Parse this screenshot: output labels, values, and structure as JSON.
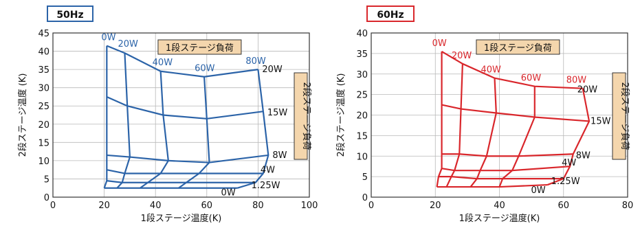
{
  "chart_data": [
    {
      "type": "line",
      "title": "50Hz",
      "xlabel": "1段ステージ温度(K)",
      "ylabel": "2段ステージ温度 (K)",
      "xlim": [
        0,
        100
      ],
      "ylim": [
        0,
        45
      ],
      "xticks": [
        0,
        20,
        40,
        60,
        80,
        100
      ],
      "yticks": [
        0,
        5,
        10,
        15,
        20,
        25,
        30,
        35,
        40,
        45
      ],
      "grid": true,
      "color": "#2b63a8",
      "legend_stage1": "1段ステージ負荷",
      "legend_stage2": "2段ステージ負荷",
      "stage1_loads": [
        "0W",
        "20W",
        "40W",
        "60W",
        "80W"
      ],
      "stage2_loads": [
        "20W",
        "15W",
        "8W",
        "4W",
        "1.25W",
        "0W"
      ],
      "grid_points": [
        [
          [
            21,
            41.5
          ],
          [
            28,
            39.5
          ],
          [
            42,
            34.5
          ],
          [
            59,
            33
          ],
          [
            80,
            35
          ]
        ],
        [
          [
            21,
            27.5
          ],
          [
            29,
            25
          ],
          [
            43,
            22.5
          ],
          [
            60,
            21.5
          ],
          [
            82,
            23.5
          ]
        ],
        [
          [
            21,
            11.5
          ],
          [
            30,
            11
          ],
          [
            45,
            10
          ],
          [
            61,
            9.5
          ],
          [
            84,
            11.5
          ]
        ],
        [
          [
            21,
            7.5
          ],
          [
            28,
            6.5
          ],
          [
            42,
            6.5
          ],
          [
            57,
            6.5
          ],
          [
            82,
            6.5
          ]
        ],
        [
          [
            21,
            4.5
          ],
          [
            27,
            4
          ],
          [
            37,
            4
          ],
          [
            52,
            4
          ],
          [
            79,
            4
          ]
        ],
        [
          [
            20,
            2.5
          ],
          [
            25,
            2.5
          ],
          [
            34,
            2.5
          ],
          [
            49,
            2.5
          ],
          [
            72,
            2.5
          ]
        ]
      ]
    },
    {
      "type": "line",
      "title": "60Hz",
      "xlabel": "1段ステージ温度(K)",
      "ylabel": "2段ステージ温度 (K)",
      "xlim": [
        0,
        80
      ],
      "ylim": [
        0,
        40
      ],
      "xticks": [
        0,
        20,
        40,
        60,
        80
      ],
      "yticks": [
        0,
        5,
        10,
        15,
        20,
        25,
        30,
        35,
        40
      ],
      "grid": true,
      "color": "#d9262b",
      "legend_stage1": "1段ステージ負荷",
      "legend_stage2": "2段ステージ負荷",
      "stage1_loads": [
        "0W",
        "20W",
        "40W",
        "60W",
        "80W"
      ],
      "stage2_loads": [
        "20W",
        "15W",
        "8W",
        "4W",
        "1.25W",
        "0W"
      ],
      "grid_points": [
        [
          [
            22,
            35.5
          ],
          [
            28.5,
            32.5
          ],
          [
            38.5,
            29
          ],
          [
            51,
            27
          ],
          [
            66,
            26.5
          ]
        ],
        [
          [
            22,
            22.5
          ],
          [
            28,
            21.5
          ],
          [
            39,
            20.5
          ],
          [
            51,
            19.5
          ],
          [
            68,
            18.5
          ]
        ],
        [
          [
            22,
            10.5
          ],
          [
            27.5,
            10.5
          ],
          [
            36,
            10
          ],
          [
            46,
            10
          ],
          [
            63,
            10.5
          ]
        ],
        [
          [
            22,
            7
          ],
          [
            26,
            6.5
          ],
          [
            34,
            6.5
          ],
          [
            44,
            6.5
          ],
          [
            62,
            7.5
          ]
        ],
        [
          [
            21,
            5
          ],
          [
            25,
            5
          ],
          [
            33,
            4.5
          ],
          [
            41,
            4.5
          ],
          [
            60,
            4.5
          ]
        ],
        [
          [
            20.5,
            2.5
          ],
          [
            23.5,
            2.5
          ],
          [
            31,
            2.5
          ],
          [
            40,
            2.5
          ],
          [
            55,
            3
          ]
        ]
      ]
    }
  ]
}
